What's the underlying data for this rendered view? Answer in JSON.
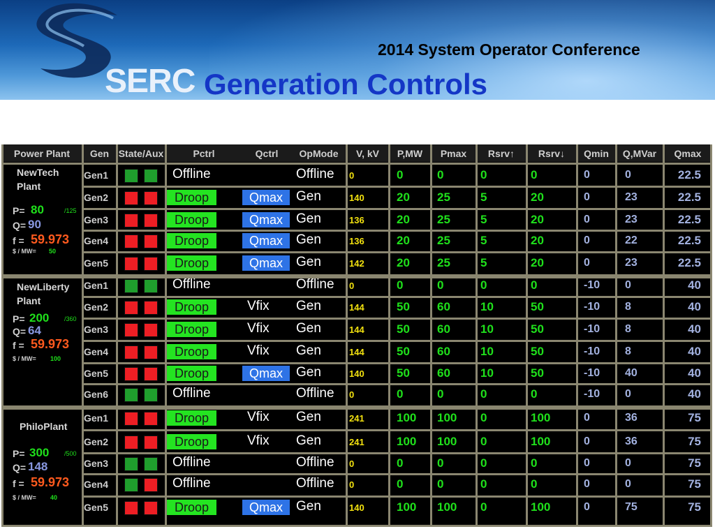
{
  "header": {
    "logo_text": "SERC",
    "conference": "2014 System Operator Conference",
    "title": "Generation Controls"
  },
  "table": {
    "columns": [
      "Power Plant",
      "Gen",
      "State/Aux",
      "Pctrl",
      "Qctrl",
      "OpMode",
      "V, kV",
      "P,MW",
      "Pmax",
      "Rsrv↑",
      "Rsrv↓",
      "Qmin",
      "Q,MVar",
      "Qmax"
    ],
    "plants": [
      {
        "name": "NewTech Plant",
        "p_label": "P=",
        "p": "80",
        "p_max": "/125",
        "q_label": "Q=",
        "q": "90",
        "f_label": "f =",
        "f": "59.973",
        "price_label": "$ / MW=",
        "price": "50",
        "rows": [
          {
            "gen": "Gen1",
            "state": "green",
            "aux": "green",
            "pctrl": "Offline",
            "pctrl_btn": false,
            "qctrl": "",
            "qctrl_btn": false,
            "opmode": "Offline",
            "v": "0",
            "p": "0",
            "pmax": "0",
            "rsrv_up": "0",
            "rsrv_dn": "0",
            "qmin": "0",
            "q": "0",
            "qmax": "22.5"
          },
          {
            "gen": "Gen2",
            "state": "red",
            "aux": "red",
            "pctrl": "Droop",
            "pctrl_btn": true,
            "qctrl": "Qmax",
            "qctrl_btn": true,
            "opmode": "Gen",
            "v": "140",
            "p": "20",
            "pmax": "25",
            "rsrv_up": "5",
            "rsrv_dn": "20",
            "qmin": "0",
            "q": "23",
            "qmax": "22.5"
          },
          {
            "gen": "Gen3",
            "state": "red",
            "aux": "red",
            "pctrl": "Droop",
            "pctrl_btn": true,
            "qctrl": "Qmax",
            "qctrl_btn": true,
            "opmode": "Gen",
            "v": "136",
            "p": "20",
            "pmax": "25",
            "rsrv_up": "5",
            "rsrv_dn": "20",
            "qmin": "0",
            "q": "23",
            "qmax": "22.5"
          },
          {
            "gen": "Gen4",
            "state": "red",
            "aux": "red",
            "pctrl": "Droop",
            "pctrl_btn": true,
            "qctrl": "Qmax",
            "qctrl_btn": true,
            "opmode": "Gen",
            "v": "136",
            "p": "20",
            "pmax": "25",
            "rsrv_up": "5",
            "rsrv_dn": "20",
            "qmin": "0",
            "q": "22",
            "qmax": "22.5"
          },
          {
            "gen": "Gen5",
            "state": "red",
            "aux": "red",
            "pctrl": "Droop",
            "pctrl_btn": true,
            "qctrl": "Qmax",
            "qctrl_btn": true,
            "opmode": "Gen",
            "v": "142",
            "p": "20",
            "pmax": "25",
            "rsrv_up": "5",
            "rsrv_dn": "20",
            "qmin": "0",
            "q": "23",
            "qmax": "22.5"
          }
        ]
      },
      {
        "name": "NewLiberty Plant",
        "p_label": "P=",
        "p": "200",
        "p_max": "/360",
        "q_label": "Q=",
        "q": "64",
        "f_label": "f =",
        "f": "59.973",
        "price_label": "$ / MW=",
        "price": "100",
        "rows": [
          {
            "gen": "Gen1",
            "state": "green",
            "aux": "green",
            "pctrl": "Offline",
            "pctrl_btn": false,
            "qctrl": "",
            "qctrl_btn": false,
            "opmode": "Offline",
            "v": "0",
            "p": "0",
            "pmax": "0",
            "rsrv_up": "0",
            "rsrv_dn": "0",
            "qmin": "-10",
            "q": "0",
            "qmax": "40"
          },
          {
            "gen": "Gen2",
            "state": "red",
            "aux": "red",
            "pctrl": "Droop",
            "pctrl_btn": true,
            "qctrl": "Vfix",
            "qctrl_btn": false,
            "opmode": "Gen",
            "v": "144",
            "p": "50",
            "pmax": "60",
            "rsrv_up": "10",
            "rsrv_dn": "50",
            "qmin": "-10",
            "q": "8",
            "qmax": "40"
          },
          {
            "gen": "Gen3",
            "state": "red",
            "aux": "red",
            "pctrl": "Droop",
            "pctrl_btn": true,
            "qctrl": "Vfix",
            "qctrl_btn": false,
            "opmode": "Gen",
            "v": "144",
            "p": "50",
            "pmax": "60",
            "rsrv_up": "10",
            "rsrv_dn": "50",
            "qmin": "-10",
            "q": "8",
            "qmax": "40"
          },
          {
            "gen": "Gen4",
            "state": "red",
            "aux": "red",
            "pctrl": "Droop",
            "pctrl_btn": true,
            "qctrl": "Vfix",
            "qctrl_btn": false,
            "opmode": "Gen",
            "v": "144",
            "p": "50",
            "pmax": "60",
            "rsrv_up": "10",
            "rsrv_dn": "50",
            "qmin": "-10",
            "q": "8",
            "qmax": "40"
          },
          {
            "gen": "Gen5",
            "state": "red",
            "aux": "red",
            "pctrl": "Droop",
            "pctrl_btn": true,
            "qctrl": "Qmax",
            "qctrl_btn": true,
            "opmode": "Gen",
            "v": "140",
            "p": "50",
            "pmax": "60",
            "rsrv_up": "10",
            "rsrv_dn": "50",
            "qmin": "-10",
            "q": "40",
            "qmax": "40"
          },
          {
            "gen": "Gen6",
            "state": "green",
            "aux": "green",
            "pctrl": "Offline",
            "pctrl_btn": false,
            "qctrl": "",
            "qctrl_btn": false,
            "opmode": "Offline",
            "v": "0",
            "p": "0",
            "pmax": "0",
            "rsrv_up": "0",
            "rsrv_dn": "0",
            "qmin": "-10",
            "q": "0",
            "qmax": "40"
          }
        ]
      },
      {
        "name": "PhiloPlant",
        "p_label": "P=",
        "p": "300",
        "p_max": "/500",
        "q_label": "Q=",
        "q": "148",
        "f_label": "f =",
        "f": "59.973",
        "price_label": "$ / MW=",
        "price": "40",
        "rows": [
          {
            "gen": "Gen1",
            "state": "red",
            "aux": "red",
            "pctrl": "Droop",
            "pctrl_btn": true,
            "qctrl": "Vfix",
            "qctrl_btn": false,
            "opmode": "Gen",
            "v": "241",
            "p": "100",
            "pmax": "100",
            "rsrv_up": "0",
            "rsrv_dn": "100",
            "qmin": "0",
            "q": "36",
            "qmax": "75"
          },
          {
            "gen": "Gen2",
            "state": "red",
            "aux": "red",
            "pctrl": "Droop",
            "pctrl_btn": true,
            "qctrl": "Vfix",
            "qctrl_btn": false,
            "opmode": "Gen",
            "v": "241",
            "p": "100",
            "pmax": "100",
            "rsrv_up": "0",
            "rsrv_dn": "100",
            "qmin": "0",
            "q": "36",
            "qmax": "75"
          },
          {
            "gen": "Gen3",
            "state": "green",
            "aux": "green",
            "pctrl": "Offline",
            "pctrl_btn": false,
            "qctrl": "",
            "qctrl_btn": false,
            "opmode": "Offline",
            "v": "0",
            "p": "0",
            "pmax": "0",
            "rsrv_up": "0",
            "rsrv_dn": "0",
            "qmin": "0",
            "q": "0",
            "qmax": "75"
          },
          {
            "gen": "Gen4",
            "state": "green",
            "aux": "red",
            "pctrl": "Offline",
            "pctrl_btn": false,
            "qctrl": "",
            "qctrl_btn": false,
            "opmode": "Offline",
            "v": "0",
            "p": "0",
            "pmax": "0",
            "rsrv_up": "0",
            "rsrv_dn": "0",
            "qmin": "0",
            "q": "0",
            "qmax": "75"
          },
          {
            "gen": "Gen5",
            "state": "red",
            "aux": "red",
            "pctrl": "Droop",
            "pctrl_btn": true,
            "qctrl": "Qmax",
            "qctrl_btn": true,
            "opmode": "Gen",
            "v": "140",
            "p": "100",
            "pmax": "100",
            "rsrv_up": "0",
            "rsrv_dn": "100",
            "qmin": "0",
            "q": "75",
            "qmax": "75"
          }
        ]
      }
    ]
  },
  "colors": {
    "state_green": "#1f9e2d",
    "state_red": "#ee1e24",
    "droop_button": "#24e421",
    "qmax_button": "#2e73e6",
    "voltage_text": "#f2e10f",
    "mw_text": "#1fe01b",
    "mvar_text": "#a3b2e0",
    "frequency_text": "#ff5a1e"
  }
}
